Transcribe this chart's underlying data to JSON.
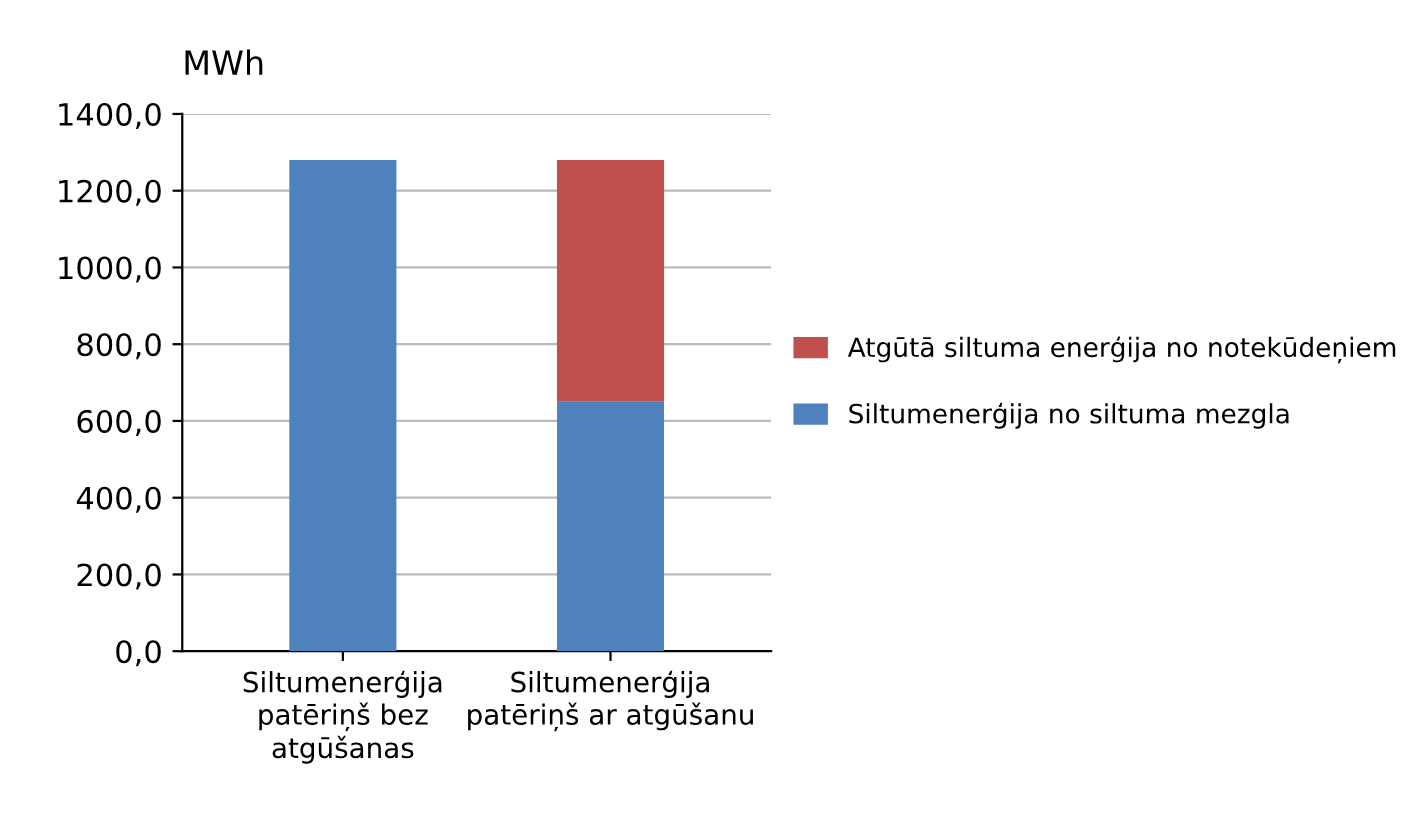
{
  "chart_data": {
    "type": "bar",
    "stacked": true,
    "ylabel": "MWh",
    "categories": [
      "Siltumenerģija patēriņš bez atgūšanas",
      "Siltumenerģija patēriņš ar atgūšanu"
    ],
    "series": [
      {
        "name": "Siltumenerģija no siltuma mezgla",
        "color": "#4f81bd",
        "values": [
          1280,
          650
        ]
      },
      {
        "name": "Atgūtā siltuma enerģija no notekūdeņiem",
        "color": "#c0504d",
        "values": [
          null,
          630
        ]
      }
    ],
    "ylim": [
      0,
      1400
    ],
    "yticks": [
      {
        "value": 0,
        "label": "0,0"
      },
      {
        "value": 200,
        "label": "200,0"
      },
      {
        "value": 400,
        "label": "400,0"
      },
      {
        "value": 600,
        "label": "600,0"
      },
      {
        "value": 800,
        "label": "800,0"
      },
      {
        "value": 1000,
        "label": "1000,0"
      },
      {
        "value": 1200,
        "label": "1200,0"
      },
      {
        "value": 1400,
        "label": "1400,0"
      }
    ],
    "grid": "y",
    "legend": "right"
  }
}
